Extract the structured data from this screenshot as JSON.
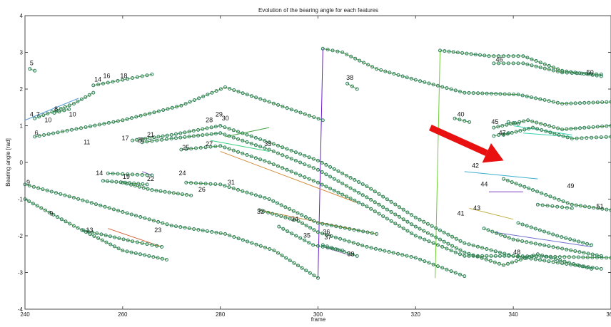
{
  "chart_data": {
    "type": "scatter",
    "title": "Evolution of the bearing angle for each features",
    "xlabel": "frame",
    "ylabel": "Bearing angle [rad]",
    "xlim": [
      240,
      360
    ],
    "ylim": [
      -4,
      4
    ],
    "xticks": [
      240,
      260,
      280,
      300,
      320,
      340,
      360
    ],
    "yticks": [
      -4,
      -3,
      -2,
      -1,
      0,
      1,
      2,
      3,
      4
    ],
    "grid": false,
    "marker_color": "#2e7d5b",
    "arrow_color": "#e81010",
    "arrow": {
      "from": [
        323,
        0.95
      ],
      "to": [
        338,
        0.05
      ]
    },
    "trajectories": [
      {
        "color": "#2f8f2f",
        "points": [
          [
            240,
            -0.6
          ],
          [
            250,
            -0.96
          ],
          [
            260,
            -1.35
          ],
          [
            270,
            -1.72
          ],
          [
            281,
            -1.95
          ],
          [
            291,
            -2.4
          ],
          [
            300,
            -3.15
          ]
        ]
      },
      {
        "color": "#2f8f2f",
        "points": [
          [
            240,
            -1.0
          ],
          [
            250,
            -1.73
          ],
          [
            260,
            -2.4
          ],
          [
            269,
            -2.65
          ]
        ]
      },
      {
        "color": "#2f8f2f",
        "points": [
          [
            242,
            0.7
          ],
          [
            260,
            1.15
          ],
          [
            272,
            1.55
          ],
          [
            281,
            2.05
          ],
          [
            290,
            1.65
          ],
          [
            301,
            1.15
          ]
        ]
      },
      {
        "color": "#2f8f2f",
        "points": [
          [
            301,
            3.1
          ],
          [
            305,
            3.0
          ],
          [
            312,
            2.55
          ],
          [
            320,
            2.25
          ],
          [
            330,
            1.9
          ],
          [
            341,
            1.85
          ],
          [
            350,
            1.6
          ],
          [
            360,
            1.65
          ]
        ]
      },
      {
        "color": "#2f8f2f",
        "points": [
          [
            262,
            0.6
          ],
          [
            270,
            0.75
          ],
          [
            280,
            1.0
          ],
          [
            290,
            0.55
          ],
          [
            300,
            0.05
          ],
          [
            310,
            -0.65
          ],
          [
            320,
            -1.5
          ],
          [
            330,
            -2.2
          ],
          [
            340,
            -2.55
          ],
          [
            360,
            -2.6
          ]
        ]
      },
      {
        "color": "#2f8f2f",
        "points": [
          [
            264,
            0.55
          ],
          [
            270,
            0.65
          ],
          [
            280,
            0.8
          ],
          [
            290,
            0.35
          ],
          [
            300,
            -0.2
          ],
          [
            310,
            -0.95
          ],
          [
            320,
            -1.75
          ],
          [
            330,
            -2.45
          ],
          [
            338,
            -2.8
          ],
          [
            345,
            -2.5
          ],
          [
            356,
            -2.9
          ]
        ]
      },
      {
        "color": "#2f8f2f",
        "points": [
          [
            272,
            0.35
          ],
          [
            280,
            0.45
          ],
          [
            290,
            0.0
          ],
          [
            300,
            -0.55
          ],
          [
            310,
            -1.2
          ],
          [
            320,
            -2.0
          ],
          [
            330,
            -2.55
          ],
          [
            340,
            -2.55
          ],
          [
            350,
            -2.75
          ],
          [
            358,
            -2.9
          ]
        ]
      },
      {
        "color": "#2f8f2f",
        "points": [
          [
            325,
            3.05
          ],
          [
            335,
            2.9
          ],
          [
            342,
            2.9
          ],
          [
            350,
            2.5
          ],
          [
            358,
            2.35
          ]
        ]
      },
      {
        "color": "#2f8f2f",
        "points": [
          [
            242,
            1.2
          ],
          [
            250,
            1.6
          ],
          [
            254,
            1.9
          ]
        ]
      },
      {
        "color": "#2f8f2f",
        "points": [
          [
            254,
            2.1
          ],
          [
            260,
            2.25
          ],
          [
            266,
            2.4
          ]
        ]
      },
      {
        "color": "#2f8f2f",
        "points": [
          [
            273,
            -0.55
          ],
          [
            280,
            -0.6
          ],
          [
            290,
            -1.0
          ],
          [
            300,
            -1.65
          ],
          [
            312,
            -1.95
          ]
        ]
      },
      {
        "color": "#2f8f2f",
        "points": [
          [
            288,
            -1.3
          ],
          [
            296,
            -1.6
          ],
          [
            300,
            -1.9
          ],
          [
            310,
            -2.3
          ],
          [
            320,
            -2.6
          ],
          [
            330,
            -3.1
          ]
        ]
      },
      {
        "color": "#2f8f2f",
        "points": [
          [
            334,
            -1.8
          ],
          [
            340,
            -2.1
          ],
          [
            350,
            -2.35
          ],
          [
            358,
            -2.55
          ]
        ]
      },
      {
        "color": "#2f8f2f",
        "points": [
          [
            338,
            -0.45
          ],
          [
            344,
            -0.75
          ],
          [
            352,
            -1.15
          ],
          [
            360,
            -1.3
          ]
        ]
      },
      {
        "color": "#2f8f2f",
        "points": [
          [
            336,
            2.7
          ],
          [
            342,
            2.7
          ],
          [
            350,
            2.45
          ],
          [
            358,
            2.4
          ]
        ]
      },
      {
        "color": "#2f8f2f",
        "points": [
          [
            341,
            -1.65
          ],
          [
            349,
            -2.0
          ],
          [
            356,
            -2.25
          ]
        ]
      },
      {
        "color": "#2f8f2f",
        "points": [
          [
            292,
            -1.75
          ],
          [
            299,
            -2.25
          ],
          [
            305,
            -2.4
          ]
        ]
      },
      {
        "color": "#2f8f2f",
        "points": [
          [
            301,
            -2.25
          ],
          [
            308,
            -2.55
          ]
        ]
      },
      {
        "color": "#2f8f2f",
        "points": [
          [
            256,
            -0.5
          ],
          [
            265,
            -0.6
          ]
        ]
      },
      {
        "color": "#2f8f2f",
        "points": [
          [
            260,
            -0.55
          ],
          [
            266,
            -0.75
          ],
          [
            274,
            -0.9
          ]
        ]
      },
      {
        "color": "#2f8f2f",
        "points": [
          [
            252,
            -1.85
          ],
          [
            262,
            -2.15
          ],
          [
            268,
            -2.3
          ]
        ]
      },
      {
        "color": "#2f8f2f",
        "points": [
          [
            246,
            1.35
          ],
          [
            249,
            1.45
          ]
        ]
      },
      {
        "color": "#2f8f2f",
        "points": [
          [
            241,
            2.55
          ],
          [
            242,
            2.5
          ]
        ]
      },
      {
        "color": "#2f8f2f",
        "points": [
          [
            306,
            2.15
          ],
          [
            308,
            2.0
          ]
        ]
      },
      {
        "color": "#2f8f2f",
        "points": [
          [
            339,
            1.1
          ],
          [
            341,
            1.05
          ]
        ]
      },
      {
        "color": "#2f8f2f",
        "points": [
          [
            336,
            0.95
          ],
          [
            343,
            1.15
          ],
          [
            350,
            0.9
          ],
          [
            360,
            1.0
          ]
        ]
      },
      {
        "color": "#2f8f2f",
        "points": [
          [
            338,
            0.75
          ],
          [
            344,
            0.95
          ],
          [
            352,
            0.65
          ],
          [
            360,
            0.7
          ]
        ]
      },
      {
        "color": "#2f8f2f",
        "points": [
          [
            336,
            0.72
          ],
          [
            339,
            0.8
          ]
        ]
      },
      {
        "color": "#2f8f2f",
        "points": [
          [
            328,
            1.2
          ],
          [
            331,
            1.1
          ]
        ]
      },
      {
        "color": "#2f8f2f",
        "points": [
          [
            257,
            -0.3
          ],
          [
            266,
            -0.35
          ]
        ]
      },
      {
        "color": "#2f8f2f",
        "points": [
          [
            345,
            -1.15
          ],
          [
            352,
            -1.25
          ]
        ]
      }
    ],
    "segments": [
      {
        "color": "#6a1bd0",
        "from": [
          300,
          -3.15
        ],
        "to": [
          301,
          3.1
        ]
      },
      {
        "color": "#6fce3a",
        "from": [
          324,
          -3.15
        ],
        "to": [
          325,
          3.05
        ]
      },
      {
        "color": "#3bb0d0",
        "from": [
          330,
          -0.25
        ],
        "to": [
          345,
          -0.45
        ]
      },
      {
        "color": "#7b3cc0",
        "from": [
          335,
          -0.8
        ],
        "to": [
          342,
          -0.8
        ]
      },
      {
        "color": "#d08c3c",
        "from": [
          280,
          0.3
        ],
        "to": [
          308,
          -1.1
        ]
      },
      {
        "color": "#c0863b",
        "from": [
          288,
          -1.3
        ],
        "to": [
          312,
          -1.95
        ]
      },
      {
        "color": "#d06030",
        "from": [
          257,
          -1.8
        ],
        "to": [
          268,
          -2.3
        ]
      },
      {
        "color": "#7070d0",
        "from": [
          336,
          -1.9
        ],
        "to": [
          356,
          -2.3
        ]
      },
      {
        "color": "#3bd0b0",
        "from": [
          340,
          1.0
        ],
        "to": [
          352,
          0.75
        ]
      },
      {
        "color": "#3bd0b0",
        "from": [
          342,
          0.8
        ],
        "to": [
          352,
          0.7
        ]
      },
      {
        "color": "#c0b040",
        "from": [
          331,
          -1.25
        ],
        "to": [
          340,
          -1.55
        ]
      },
      {
        "color": "#c070d0",
        "from": [
          301,
          -2.3
        ],
        "to": [
          307,
          -2.55
        ]
      },
      {
        "color": "#3bd080",
        "from": [
          278,
          0.6
        ],
        "to": [
          290,
          0.3
        ]
      },
      {
        "color": "#5a9bd0",
        "from": [
          240,
          1.15
        ],
        "to": [
          251,
          1.75
        ]
      },
      {
        "color": "#9a5bd0",
        "from": [
          264,
          -0.25
        ],
        "to": [
          266,
          -0.35
        ]
      },
      {
        "color": "#40a040",
        "from": [
          281,
          0.7
        ],
        "to": [
          290,
          0.95
        ]
      }
    ],
    "labels": [
      {
        "text": "5",
        "x": 241,
        "y": 2.65
      },
      {
        "text": "4",
        "x": 241,
        "y": 1.25
      },
      {
        "text": "7",
        "x": 242.3,
        "y": 1.25
      },
      {
        "text": "10",
        "x": 244,
        "y": 1.1
      },
      {
        "text": "6",
        "x": 242,
        "y": 0.75
      },
      {
        "text": "8",
        "x": 246,
        "y": 1.4
      },
      {
        "text": "10",
        "x": 249,
        "y": 1.25
      },
      {
        "text": "11",
        "x": 252,
        "y": 0.5
      },
      {
        "text": "14",
        "x": 254.2,
        "y": 2.2
      },
      {
        "text": "16",
        "x": 256,
        "y": 2.3
      },
      {
        "text": "18",
        "x": 259.5,
        "y": 2.3
      },
      {
        "text": "17",
        "x": 259.8,
        "y": 0.6
      },
      {
        "text": "20",
        "x": 263,
        "y": 0.55
      },
      {
        "text": "21",
        "x": 265,
        "y": 0.7
      },
      {
        "text": "25",
        "x": 272.2,
        "y": 0.35
      },
      {
        "text": "27",
        "x": 277,
        "y": 0.45
      },
      {
        "text": "28",
        "x": 277,
        "y": 1.1
      },
      {
        "text": "29",
        "x": 279,
        "y": 1.25
      },
      {
        "text": "30",
        "x": 280.3,
        "y": 1.15
      },
      {
        "text": "33",
        "x": 289,
        "y": 0.45
      },
      {
        "text": "14",
        "x": 254.5,
        "y": -0.35
      },
      {
        "text": "19",
        "x": 260,
        "y": -0.45
      },
      {
        "text": "22",
        "x": 265,
        "y": -0.5
      },
      {
        "text": "24",
        "x": 271.5,
        "y": -0.35
      },
      {
        "text": "26",
        "x": 275.5,
        "y": -0.8
      },
      {
        "text": "31",
        "x": 281.5,
        "y": -0.6
      },
      {
        "text": "9",
        "x": 240.3,
        "y": -0.6
      },
      {
        "text": "9",
        "x": 245,
        "y": -1.45
      },
      {
        "text": "13",
        "x": 252.5,
        "y": -1.9
      },
      {
        "text": "23",
        "x": 266.5,
        "y": -1.9
      },
      {
        "text": "32",
        "x": 287.5,
        "y": -1.4
      },
      {
        "text": "34",
        "x": 294.5,
        "y": -1.6
      },
      {
        "text": "35",
        "x": 297,
        "y": -2.05
      },
      {
        "text": "36",
        "x": 301,
        "y": -1.95
      },
      {
        "text": "37",
        "x": 301.3,
        "y": -2.1
      },
      {
        "text": "39",
        "x": 306,
        "y": -2.55
      },
      {
        "text": "38",
        "x": 305.8,
        "y": 2.25
      },
      {
        "text": "40",
        "x": 328.5,
        "y": 1.25
      },
      {
        "text": "46",
        "x": 336.4,
        "y": 2.75
      },
      {
        "text": "50",
        "x": 355,
        "y": 2.4
      },
      {
        "text": "45",
        "x": 335.5,
        "y": 1.05
      },
      {
        "text": "47",
        "x": 337,
        "y": 0.75
      },
      {
        "text": "42",
        "x": 331.5,
        "y": -0.15
      },
      {
        "text": "44",
        "x": 333.3,
        "y": -0.65
      },
      {
        "text": "49",
        "x": 351,
        "y": -0.7
      },
      {
        "text": "43",
        "x": 331.8,
        "y": -1.3
      },
      {
        "text": "41",
        "x": 328.5,
        "y": -1.45
      },
      {
        "text": "48",
        "x": 340,
        "y": -2.5
      },
      {
        "text": "51",
        "x": 357,
        "y": -1.25
      }
    ]
  }
}
